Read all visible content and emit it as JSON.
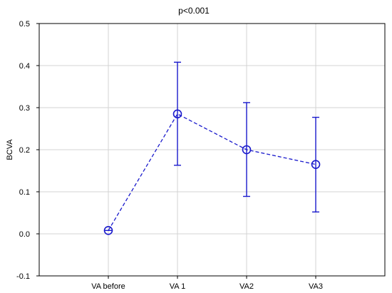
{
  "chart_data": {
    "type": "line",
    "title": "p<0.001",
    "xlabel": "",
    "ylabel": "BCVA",
    "categories": [
      "VA before",
      "VA 1",
      "VA2",
      "VA3"
    ],
    "ylim": [
      -0.1,
      0.5
    ],
    "yticks": [
      "-0.1",
      "0.0",
      "0.1",
      "0.2",
      "0.3",
      "0.4",
      "0.5"
    ],
    "grid": true,
    "series": [
      {
        "values": [
          0.008,
          0.285,
          0.2,
          0.165
        ],
        "error_lower": [
          0.008,
          0.163,
          0.089,
          0.052
        ],
        "error_upper": [
          0.008,
          0.408,
          0.312,
          0.277
        ],
        "line_style": "dashed",
        "marker": "circle",
        "color": "#1a1acc"
      }
    ]
  }
}
